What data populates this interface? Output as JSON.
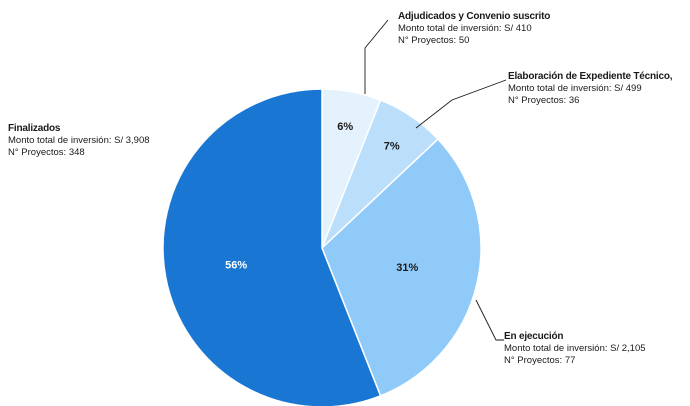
{
  "chart_data": {
    "type": "pie",
    "title": "",
    "slices": [
      {
        "name": "Finalizados",
        "percent": 56,
        "label": "56%",
        "monto": "Monto total de inversión: S/ 3,908",
        "proyectos": "N° Proyectos: 348",
        "color": "#1976D2",
        "text_color": "#ffffff"
      },
      {
        "name": "En ejecución",
        "percent": 31,
        "label": "31%",
        "monto": "Monto total de inversión: S/ 2,105",
        "proyectos": "N° Proyectos: 77",
        "color": "#90CAF9",
        "text_color": "#1a1a1a"
      },
      {
        "name": "Elaboración de Expediente Técnico,",
        "percent": 7,
        "label": "7%",
        "monto": "Monto total de inversión: S/ 499",
        "proyectos": "N° Proyectos: 36",
        "color": "#BBDEFB",
        "text_color": "#1a1a1a"
      },
      {
        "name": "Adjudicados y Convenio suscrito",
        "percent": 6,
        "label": "6%",
        "monto": "Monto total de inversión: S/ 410",
        "proyectos": "N° Proyectos: 50",
        "color": "#E3F2FD",
        "text_color": "#1a1a1a"
      }
    ]
  }
}
